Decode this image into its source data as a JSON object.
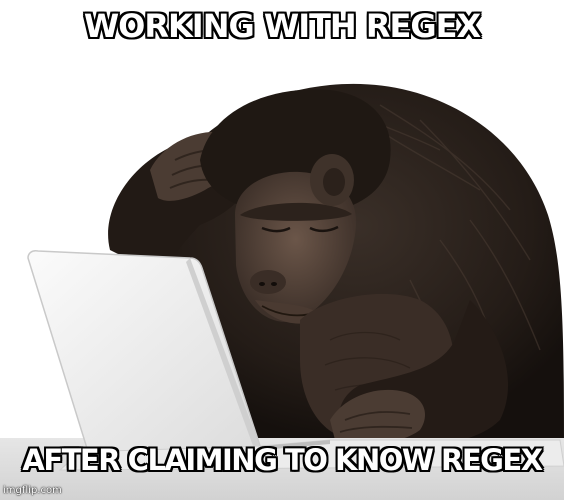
{
  "meme": {
    "top_text": "WORKING WITH REGEX",
    "bottom_text": "AFTER CLAIMING TO KNOW REGEX",
    "watermark": "imgflip.com"
  },
  "scene": {
    "subject": "chimpanzee-icon",
    "object": "laptop-icon",
    "colors": {
      "fur": "#2a221d",
      "skin": "#5e4c42",
      "laptop": "#f1f1f1",
      "background": "#ffffff"
    }
  }
}
